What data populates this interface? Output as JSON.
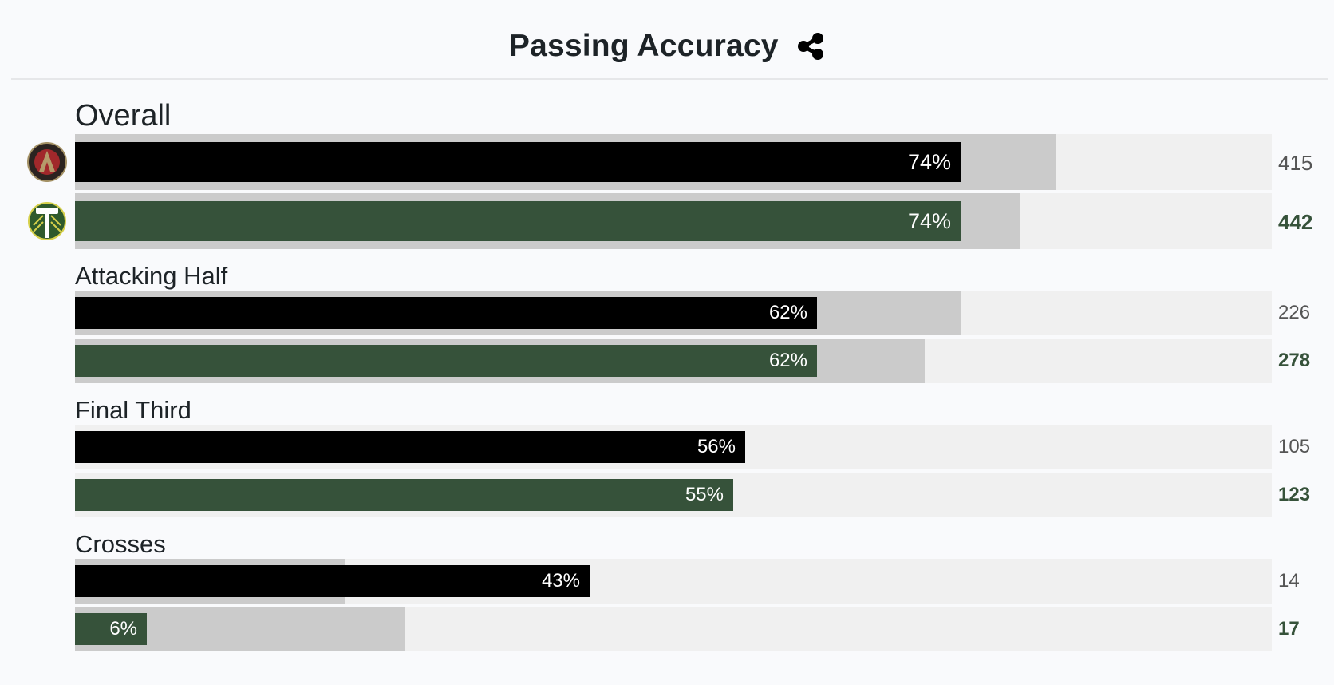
{
  "header": {
    "title": "Passing Accuracy",
    "share_icon": "share-icon"
  },
  "colors": {
    "away": "#000000",
    "home": "#36523a",
    "benchmark": "#cbcbcb",
    "track": "#f0f0f0",
    "background": "#f9fafc"
  },
  "teams": [
    {
      "key": "away",
      "logo": "atlanta-united-logo",
      "color": "#000000"
    },
    {
      "key": "home",
      "logo": "portland-timbers-logo",
      "color": "#36523a"
    }
  ],
  "chart_data": {
    "type": "bar",
    "title": "Passing Accuracy",
    "xlim": [
      0,
      100
    ],
    "categories": [
      "Overall",
      "Attacking Half",
      "Final Third",
      "Crosses"
    ],
    "series": [
      {
        "team": "away",
        "accuracy_labels": [
          "74%",
          "62%",
          "56%",
          "43%"
        ],
        "accuracy": [
          74,
          62,
          56,
          43
        ],
        "benchmark": [
          82,
          74,
          0,
          22.5
        ],
        "passes": [
          "415",
          "226",
          "105",
          "14"
        ]
      },
      {
        "team": "home",
        "accuracy_labels": [
          "74%",
          "62%",
          "55%",
          "6%"
        ],
        "accuracy": [
          74,
          62,
          55,
          6
        ],
        "benchmark": [
          79,
          71,
          0,
          27.5
        ],
        "passes": [
          "442",
          "278",
          "123",
          "17"
        ]
      }
    ]
  }
}
